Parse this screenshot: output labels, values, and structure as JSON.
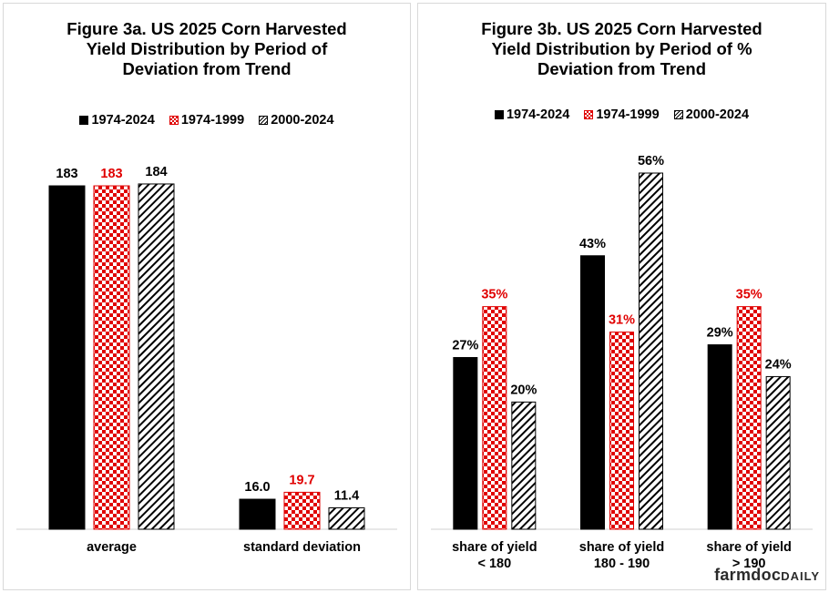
{
  "chart_data": [
    {
      "type": "bar",
      "title": "Figure 3a. US 2025 Corn Harvested\nYield Distribution by Period of\nDeviation from Trend",
      "categories": [
        "average",
        "standard deviation"
      ],
      "series": [
        {
          "name": "1974-2024",
          "values": [
            183,
            16.0
          ],
          "labels": [
            "183",
            "16.0"
          ],
          "pattern": "solid",
          "label_color": "#000000"
        },
        {
          "name": "1974-1999",
          "values": [
            183,
            19.7
          ],
          "labels": [
            "183",
            "19.7"
          ],
          "pattern": "checker",
          "label_color": "#e00000"
        },
        {
          "name": "2000-2024",
          "values": [
            184,
            11.4
          ],
          "labels": [
            "184",
            "11.4"
          ],
          "pattern": "hatch",
          "label_color": "#000000"
        }
      ],
      "ylim": [
        0,
        200
      ],
      "grid": false,
      "legend_position": "top"
    },
    {
      "type": "bar",
      "title": "Figure 3b. US 2025 Corn Harvested\nYield Distribution by Period of %\nDeviation from Trend",
      "categories": [
        "share of yield\n< 180",
        "share of yield\n180 - 190",
        "share of yield\n> 190"
      ],
      "series": [
        {
          "name": "1974-2024",
          "values": [
            27,
            43,
            29
          ],
          "labels": [
            "27%",
            "43%",
            "29%"
          ],
          "pattern": "solid",
          "label_color": "#000000"
        },
        {
          "name": "1974-1999",
          "values": [
            35,
            31,
            35
          ],
          "labels": [
            "35%",
            "31%",
            "35%"
          ],
          "pattern": "checker",
          "label_color": "#e00000"
        },
        {
          "name": "2000-2024",
          "values": [
            20,
            56,
            24
          ],
          "labels": [
            "20%",
            "56%",
            "24%"
          ],
          "pattern": "hatch",
          "label_color": "#000000"
        }
      ],
      "ylim": [
        0,
        56
      ],
      "grid": false,
      "legend_position": "top"
    }
  ],
  "colors": {
    "solid": "#000000",
    "checker": "#e00000",
    "hatch": "#000000"
  },
  "logo": {
    "main": "farmdoc",
    "suffix": "DAILY"
  }
}
